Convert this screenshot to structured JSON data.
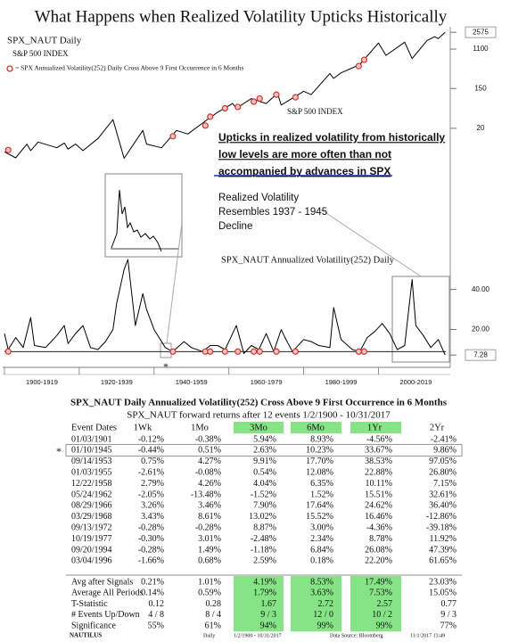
{
  "title": "What Happens when Realized Volatility Upticks Historically",
  "chart_data": [
    {
      "type": "line",
      "title": "SPX_NAUT Daily",
      "subtitle": "S&P 500 INDEX",
      "log_scale": true,
      "xlim": [
        1900,
        2018
      ],
      "ylim": [
        2,
        3400
      ],
      "yticks": [
        20,
        150,
        1100,
        2575
      ],
      "series": [
        {
          "name": "S&P 500 INDEX",
          "color": "#000000",
          "x": [
            1900,
            1903,
            1906,
            1907,
            1909,
            1914,
            1916,
            1917,
            1919,
            1921,
            1925,
            1929,
            1932,
            1937,
            1938,
            1942,
            1946,
            1949,
            1954,
            1957,
            1961,
            1962,
            1966,
            1970,
            1973,
            1974,
            1980,
            1982,
            1987,
            1988,
            1990,
            1995,
            2000,
            2002,
            2007,
            2009,
            2013,
            2015,
            2016,
            2017.8
          ],
          "values": [
            6.1,
            4.5,
            9,
            6.5,
            10,
            7.5,
            9.5,
            7,
            9,
            6.5,
            12,
            31,
            4.4,
            18,
            9,
            7.5,
            18,
            15,
            30,
            45,
            70,
            55,
            90,
            70,
            118,
            65,
            130,
            110,
            320,
            250,
            330,
            500,
            1500,
            800,
            1560,
            680,
            1700,
            2050,
            1870,
            2575
          ]
        },
        {
          "name": "= SPX Annualized Volatility(252) Daily Cross Above 9 First Occurrence in 6 Months",
          "color": "#d0342c",
          "marker": "circle",
          "x": [
            1901.0,
            1945.03,
            1953.7,
            1955.0,
            1958.97,
            1962.4,
            1966.66,
            1968.24,
            1972.7,
            1977.8,
            1994.72,
            1996.17
          ],
          "values": [
            6.7,
            13.4,
            23,
            36,
            55,
            59,
            77,
            90,
            110,
            96,
            465,
            640
          ]
        }
      ]
    },
    {
      "type": "line",
      "title": "SPX_NAUT Annualized Volatility(252) Daily",
      "xlim": [
        1900,
        2018
      ],
      "ylim": [
        2,
        55
      ],
      "yticks": [
        {
          "value": 40,
          "label": "40.00"
        },
        {
          "value": 20,
          "label": "20.00"
        },
        7.28
      ],
      "xticks": [
        {
          "value": 1900,
          "label": "1900-1919"
        },
        {
          "value": 1920,
          "label": "1920-1939"
        },
        {
          "value": 1940,
          "label": "1940-1959"
        },
        {
          "value": 1960,
          "label": "1960-1979"
        },
        {
          "value": 1980,
          "label": "1980-1999"
        },
        {
          "value": 2000,
          "label": "2000-2019"
        }
      ],
      "threshold": 9,
      "series": [
        {
          "color": "#000000",
          "x": [
            1900,
            1901,
            1903,
            1905,
            1907,
            1908,
            1911,
            1914,
            1916,
            1917,
            1919,
            1921,
            1923,
            1925,
            1927,
            1929,
            1930,
            1932,
            1933,
            1935,
            1937,
            1938,
            1940,
            1943,
            1945,
            1948,
            1950,
            1953,
            1955,
            1957,
            1959,
            1962,
            1964,
            1966,
            1968,
            1970,
            1972,
            1974,
            1975,
            1977,
            1980,
            1982,
            1984,
            1987,
            1988,
            1990,
            1993,
            1995,
            1997,
            1999,
            2001,
            2003,
            2005,
            2007,
            2009,
            2010,
            2012,
            2014,
            2016,
            2017.8
          ],
          "values": [
            18,
            10,
            16,
            11,
            26,
            12,
            11,
            17,
            22,
            13,
            18,
            22,
            11,
            10,
            14,
            20,
            33,
            50,
            55,
            22,
            38,
            30,
            20,
            11,
            9,
            14,
            11,
            9,
            12,
            12,
            10,
            22,
            8,
            12,
            10,
            18,
            9,
            20,
            16,
            9,
            15,
            14,
            12,
            11,
            31,
            15,
            10,
            9,
            16,
            19,
            23,
            18,
            10,
            12,
            45,
            22,
            17,
            11,
            15,
            7.28
          ]
        },
        {
          "color": "#d0342c",
          "marker": "circle",
          "x": [
            1901.0,
            1945.03,
            1953.7,
            1955.0,
            1958.97,
            1962.4,
            1966.66,
            1968.24,
            1972.7,
            1977.8,
            1994.72,
            1996.17
          ],
          "values": [
            9,
            9,
            9,
            9,
            9,
            9,
            9,
            9,
            9,
            9,
            9,
            9
          ]
        }
      ]
    }
  ],
  "annotations": {
    "spx_note": [
      "Upticks in realized volatility from historically",
      "low levels are more often than not",
      "accompanied by advances in SPX"
    ],
    "spx_note_color": "#1a35b5",
    "vol_note": [
      "Realized Volatility",
      "Resembles 1937 - 1945",
      "Decline"
    ],
    "star": "*"
  },
  "table": {
    "title": "SPX_NAUT Daily Annualized Volatility(252) Cross Above 9 First Occurrence in 6 Months",
    "subtitle": "SPX_NAUT forward returns after 12 events 1/2/1900 - 10/31/2017",
    "header": [
      "Event Dates",
      "1Wk",
      "1Mo",
      "3Mo",
      "6Mo",
      "1Yr",
      "2Yr"
    ],
    "highlight_columns": [
      3,
      4,
      5
    ],
    "highlight_color": "#86e486",
    "boxed_row": 1,
    "rows": [
      [
        "01/03/1901",
        "-0.12%",
        "-0.38%",
        "5.94%",
        "8.93%",
        "-4.56%",
        "-2.41%"
      ],
      [
        "01/10/1945",
        "-0.44%",
        "0.51%",
        "2.63%",
        "10.23%",
        "33.67%",
        "9.86%"
      ],
      [
        "09/14/1953",
        "0.75%",
        "4.27%",
        "9.91%",
        "17.70%",
        "38.53%",
        "97.05%"
      ],
      [
        "01/03/1955",
        "-2.61%",
        "-0.08%",
        "0.54%",
        "12.08%",
        "22.88%",
        "26.80%"
      ],
      [
        "12/22/1958",
        "2.79%",
        "4.26%",
        "4.04%",
        "6.35%",
        "10.11%",
        "7.15%"
      ],
      [
        "05/24/1962",
        "-2.05%",
        "-13.48%",
        "-1.52%",
        "1.52%",
        "15.51%",
        "32.61%"
      ],
      [
        "08/29/1966",
        "3.26%",
        "3.46%",
        "7.90%",
        "17.64%",
        "24.62%",
        "36.40%"
      ],
      [
        "03/29/1968",
        "3.43%",
        "8.61%",
        "13.02%",
        "15.52%",
        "16.46%",
        "-12.86%"
      ],
      [
        "09/13/1972",
        "-0.28%",
        "-0.28%",
        "8.87%",
        "3.00%",
        "-4.36%",
        "-39.18%"
      ],
      [
        "10/19/1977",
        "-0.30%",
        "3.01%",
        "-2.48%",
        "2.34%",
        "8.78%",
        "11.92%"
      ],
      [
        "09/20/1994",
        "-0.28%",
        "1.49%",
        "-1.18%",
        "6.84%",
        "26.08%",
        "47.39%"
      ],
      [
        "03/04/1996",
        "-1.66%",
        "0.68%",
        "2.59%",
        "0.18%",
        "22.20%",
        "61.65%"
      ]
    ],
    "summary": [
      [
        "Avg after Signals",
        "0.21%",
        "1.01%",
        "4.19%",
        "8.53%",
        "17.49%",
        "23.03%"
      ],
      [
        "Average All Periods",
        "0.14%",
        "0.59%",
        "1.79%",
        "3.63%",
        "7.53%",
        "15.05%"
      ],
      [
        "T-Statistic",
        "0.12",
        "0.28",
        "1.67",
        "2.72",
        "2.57",
        "0.77"
      ],
      [
        "# Events Up/Down",
        "4 / 8",
        "8 / 4",
        "9 / 3",
        "12 / 0",
        "10 / 2",
        "9 / 3"
      ],
      [
        "Significance",
        "55%",
        "61%",
        "94%",
        "99%",
        "99%",
        "77%"
      ]
    ]
  },
  "footer": {
    "logo": "NAUTILUS",
    "period": "Daily",
    "range": "1/2/1900 - 10/31/2017",
    "source": "Data Source: Bloomberg",
    "stamp": "11/1/2017 13:49"
  }
}
